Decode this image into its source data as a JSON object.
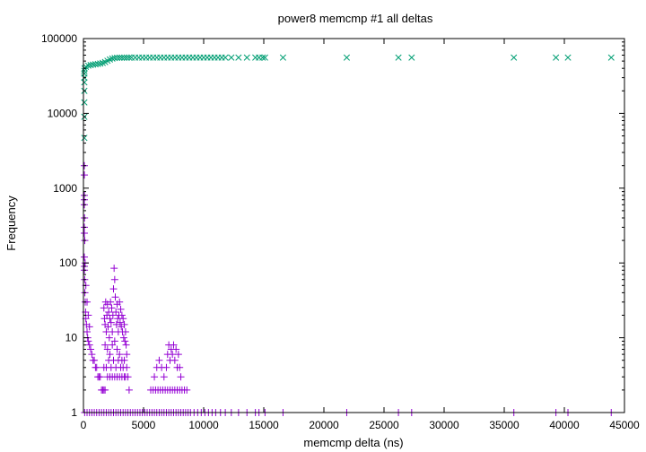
{
  "chart_data": {
    "type": "scatter",
    "title": "power8 memcmp #1 all deltas",
    "xlabel": "memcmp delta (ns)",
    "ylabel": "Frequency",
    "xlim": [
      0,
      45000
    ],
    "ylim": [
      1,
      100000
    ],
    "yscale": "log",
    "x_ticks": [
      0,
      5000,
      10000,
      15000,
      20000,
      25000,
      30000,
      35000,
      40000,
      45000
    ],
    "x_tick_labels": [
      "0",
      "5000",
      "10000",
      "15000",
      "20000",
      "25000",
      "30000",
      "35000",
      "40000",
      "45000"
    ],
    "y_ticks": [
      1,
      10,
      100,
      1000,
      10000,
      100000
    ],
    "y_tick_labels": [
      "1",
      "10",
      "100",
      "1000",
      "10000",
      "100000"
    ],
    "grid": false,
    "legend": "none",
    "series": [
      {
        "marker": "plus",
        "color": "#9400d3",
        "points": [
          [
            0,
            2000
          ],
          [
            0,
            700
          ],
          [
            0,
            300
          ],
          [
            0,
            90
          ],
          [
            30,
            1500
          ],
          [
            40,
            600
          ],
          [
            50,
            250
          ],
          [
            60,
            120
          ],
          [
            80,
            80
          ],
          [
            100,
            60
          ],
          [
            120,
            40
          ],
          [
            150,
            30
          ],
          [
            180,
            22
          ],
          [
            200,
            18
          ],
          [
            250,
            15
          ],
          [
            300,
            12
          ],
          [
            350,
            10
          ],
          [
            400,
            9
          ],
          [
            500,
            8
          ],
          [
            600,
            7
          ],
          [
            700,
            6
          ],
          [
            800,
            5
          ],
          [
            900,
            5
          ],
          [
            1000,
            4
          ],
          [
            1100,
            4
          ],
          [
            1200,
            3
          ],
          [
            1300,
            3
          ],
          [
            1400,
            3
          ],
          [
            1500,
            2
          ],
          [
            1600,
            2
          ],
          [
            1700,
            2
          ],
          [
            1800,
            2
          ],
          [
            60,
            800
          ],
          [
            90,
            400
          ],
          [
            110,
            200
          ],
          [
            140,
            100
          ],
          [
            200,
            50
          ],
          [
            300,
            30
          ],
          [
            400,
            20
          ],
          [
            500,
            14
          ],
          [
            1700,
            25
          ],
          [
            1750,
            18
          ],
          [
            1800,
            15
          ],
          [
            1850,
            30
          ],
          [
            1900,
            12
          ],
          [
            1950,
            20
          ],
          [
            2000,
            28
          ],
          [
            2050,
            14
          ],
          [
            2100,
            22
          ],
          [
            2150,
            10
          ],
          [
            2200,
            18
          ],
          [
            2250,
            30
          ],
          [
            2300,
            16
          ],
          [
            2350,
            25
          ],
          [
            2400,
            12
          ],
          [
            2450,
            20
          ],
          [
            2500,
            45
          ],
          [
            2550,
            85
          ],
          [
            2600,
            60
          ],
          [
            2650,
            35
          ],
          [
            2700,
            22
          ],
          [
            2750,
            15
          ],
          [
            2800,
            28
          ],
          [
            2850,
            18
          ],
          [
            2900,
            12
          ],
          [
            2950,
            20
          ],
          [
            3000,
            30
          ],
          [
            3050,
            16
          ],
          [
            3100,
            24
          ],
          [
            3150,
            14
          ],
          [
            3200,
            20
          ],
          [
            3250,
            12
          ],
          [
            3300,
            18
          ],
          [
            3350,
            10
          ],
          [
            3400,
            15
          ],
          [
            3450,
            9
          ],
          [
            3500,
            12
          ],
          [
            3550,
            8
          ],
          [
            3600,
            6
          ],
          [
            1800,
            8
          ],
          [
            2000,
            7
          ],
          [
            2200,
            6
          ],
          [
            2400,
            8
          ],
          [
            2600,
            9
          ],
          [
            2800,
            7
          ],
          [
            3000,
            6
          ],
          [
            3200,
            5
          ],
          [
            3400,
            5
          ],
          [
            3600,
            4
          ],
          [
            1700,
            4
          ],
          [
            1900,
            4
          ],
          [
            2100,
            5
          ],
          [
            2300,
            4
          ],
          [
            2500,
            5
          ],
          [
            2700,
            4
          ],
          [
            2900,
            5
          ],
          [
            3100,
            4
          ],
          [
            3300,
            4
          ],
          [
            3500,
            3
          ],
          [
            3700,
            3
          ],
          [
            2000,
            3
          ],
          [
            2200,
            3
          ],
          [
            2400,
            3
          ],
          [
            2600,
            3
          ],
          [
            2800,
            3
          ],
          [
            3000,
            3
          ],
          [
            3200,
            3
          ],
          [
            3400,
            3
          ],
          [
            3800,
            2
          ],
          [
            5900,
            3
          ],
          [
            6100,
            4
          ],
          [
            6300,
            5
          ],
          [
            6500,
            4
          ],
          [
            6700,
            3
          ],
          [
            6900,
            4
          ],
          [
            7000,
            6
          ],
          [
            7100,
            8
          ],
          [
            7200,
            5
          ],
          [
            7300,
            7
          ],
          [
            7400,
            6
          ],
          [
            7500,
            8
          ],
          [
            7600,
            5
          ],
          [
            7700,
            7
          ],
          [
            7800,
            4
          ],
          [
            7900,
            6
          ],
          [
            8000,
            4
          ],
          [
            8100,
            3
          ],
          [
            5600,
            2
          ],
          [
            5800,
            2
          ],
          [
            6000,
            2
          ],
          [
            6200,
            2
          ],
          [
            6400,
            2
          ],
          [
            6600,
            2
          ],
          [
            6800,
            2
          ],
          [
            7000,
            2
          ],
          [
            7200,
            2
          ],
          [
            7400,
            2
          ],
          [
            7600,
            2
          ],
          [
            7800,
            2
          ],
          [
            8000,
            2
          ],
          [
            8200,
            2
          ],
          [
            8400,
            2
          ],
          [
            8600,
            2
          ],
          [
            100,
            1
          ],
          [
            300,
            1
          ],
          [
            500,
            1
          ],
          [
            700,
            1
          ],
          [
            900,
            1
          ],
          [
            1100,
            1
          ],
          [
            1300,
            1
          ],
          [
            1500,
            1
          ],
          [
            1700,
            1
          ],
          [
            1900,
            1
          ],
          [
            2100,
            1
          ],
          [
            2300,
            1
          ],
          [
            2500,
            1
          ],
          [
            2700,
            1
          ],
          [
            2900,
            1
          ],
          [
            3100,
            1
          ],
          [
            3300,
            1
          ],
          [
            3500,
            1
          ],
          [
            3700,
            1
          ],
          [
            3900,
            1
          ],
          [
            4100,
            1
          ],
          [
            4300,
            1
          ],
          [
            4500,
            1
          ],
          [
            4700,
            1
          ],
          [
            4900,
            1
          ],
          [
            5100,
            1
          ],
          [
            5300,
            1
          ],
          [
            5500,
            1
          ],
          [
            5700,
            1
          ],
          [
            5900,
            1
          ],
          [
            6100,
            1
          ],
          [
            6300,
            1
          ],
          [
            6500,
            1
          ],
          [
            6700,
            1
          ],
          [
            6900,
            1
          ],
          [
            7100,
            1
          ],
          [
            7300,
            1
          ],
          [
            7500,
            1
          ],
          [
            7700,
            1
          ],
          [
            7900,
            1
          ],
          [
            8100,
            1
          ],
          [
            8300,
            1
          ],
          [
            8500,
            1
          ],
          [
            8700,
            1
          ],
          [
            8900,
            1
          ],
          [
            9200,
            1
          ],
          [
            9500,
            1
          ],
          [
            9800,
            1
          ],
          [
            10100,
            1
          ],
          [
            10400,
            1
          ],
          [
            10700,
            1
          ],
          [
            11000,
            1
          ],
          [
            11400,
            1
          ],
          [
            11800,
            1
          ],
          [
            12300,
            1
          ],
          [
            12900,
            1
          ],
          [
            13600,
            1
          ],
          [
            14300,
            1
          ],
          [
            14600,
            1
          ],
          [
            15100,
            1
          ],
          [
            16600,
            1
          ],
          [
            21900,
            1
          ],
          [
            26200,
            1
          ],
          [
            27300,
            1
          ],
          [
            35800,
            1
          ],
          [
            39300,
            1
          ],
          [
            40300,
            1
          ],
          [
            43900,
            1
          ]
        ]
      },
      {
        "marker": "cross",
        "color": "#009e73",
        "points": [
          [
            0,
            4700
          ],
          [
            0,
            9000
          ],
          [
            0,
            14000
          ],
          [
            0,
            20000
          ],
          [
            10,
            26000
          ],
          [
            20,
            30000
          ],
          [
            40,
            34000
          ],
          [
            60,
            37000
          ],
          [
            100,
            40000
          ],
          [
            200,
            42000
          ],
          [
            400,
            43500
          ],
          [
            600,
            44200
          ],
          [
            800,
            44800
          ],
          [
            1000,
            45300
          ],
          [
            1200,
            45800
          ],
          [
            1400,
            46400
          ],
          [
            1600,
            47200
          ],
          [
            1800,
            48500
          ],
          [
            2000,
            50500
          ],
          [
            2200,
            52500
          ],
          [
            2400,
            54000
          ],
          [
            2600,
            55000
          ],
          [
            2800,
            55400
          ],
          [
            3000,
            55500
          ],
          [
            3200,
            55600
          ],
          [
            3400,
            55600
          ],
          [
            3600,
            55600
          ],
          [
            3800,
            55650
          ],
          [
            4000,
            55650
          ],
          [
            4300,
            55700
          ],
          [
            4600,
            55700
          ],
          [
            4900,
            55700
          ],
          [
            5200,
            55700
          ],
          [
            5500,
            55700
          ],
          [
            5800,
            55700
          ],
          [
            6100,
            55700
          ],
          [
            6400,
            55700
          ],
          [
            6700,
            55700
          ],
          [
            7000,
            55700
          ],
          [
            7300,
            55700
          ],
          [
            7600,
            55700
          ],
          [
            7900,
            55700
          ],
          [
            8200,
            55700
          ],
          [
            8500,
            55700
          ],
          [
            8800,
            55700
          ],
          [
            9100,
            55700
          ],
          [
            9400,
            55700
          ],
          [
            9700,
            55700
          ],
          [
            10000,
            55700
          ],
          [
            10300,
            55700
          ],
          [
            10600,
            55700
          ],
          [
            10900,
            55700
          ],
          [
            11200,
            55700
          ],
          [
            11500,
            55700
          ],
          [
            11800,
            55700
          ],
          [
            12300,
            55700
          ],
          [
            12900,
            55700
          ],
          [
            13600,
            55700
          ],
          [
            14300,
            55700
          ],
          [
            14600,
            55700
          ],
          [
            14900,
            55700
          ],
          [
            15100,
            55700
          ],
          [
            16600,
            55700
          ],
          [
            21900,
            55700
          ],
          [
            26200,
            55700
          ],
          [
            27300,
            55700
          ],
          [
            35800,
            55700
          ],
          [
            39300,
            55700
          ],
          [
            40300,
            55700
          ],
          [
            43900,
            55700
          ]
        ]
      }
    ]
  }
}
